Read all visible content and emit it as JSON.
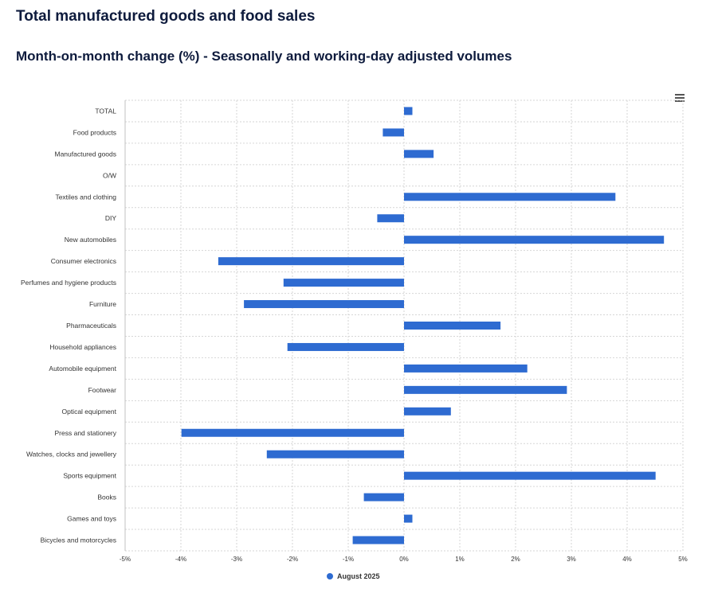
{
  "header": {
    "title": "Total manufactured goods and food sales",
    "subtitle": "Month-on-month change (%) - Seasonally and working-day adjusted volumes"
  },
  "menu": {
    "icon": "hamburger-menu-icon"
  },
  "chart_data": {
    "type": "bar",
    "orientation": "horizontal",
    "categories": [
      "TOTAL",
      "Food products",
      "Manufactured goods",
      "O/W",
      "Textiles and clothing",
      "DIY",
      "New automobiles",
      "Consumer electronics",
      "Perfumes and hygiene products",
      "Furniture",
      "Pharmaceuticals",
      "Household appliances",
      "Automobile equipment",
      "Footwear",
      "Optical equipment",
      "Press and stationery",
      "Watches, clocks and jewellery",
      "Sports equipment",
      "Books",
      "Games and toys",
      "Bicycles and motorcycles"
    ],
    "series": [
      {
        "name": "August 2025",
        "color": "#2e6bd1",
        "values": [
          0.15,
          -0.38,
          0.53,
          null,
          3.79,
          -0.48,
          4.66,
          -3.33,
          -2.16,
          -2.87,
          1.73,
          -2.09,
          2.21,
          2.92,
          0.84,
          -3.99,
          -2.46,
          4.51,
          -0.72,
          0.15,
          -0.92
        ]
      }
    ],
    "xlim": [
      -5,
      5
    ],
    "xticks": [
      -5,
      -4,
      -3,
      -2,
      -1,
      0,
      1,
      2,
      3,
      4,
      5
    ],
    "tick_labels": [
      "-5%",
      "-4%",
      "-3%",
      "-2%",
      "-1%",
      "0%",
      "1%",
      "2%",
      "3%",
      "4%",
      "5%"
    ],
    "grid": true,
    "legend": {
      "position": "bottom-center",
      "label": "August 2025"
    },
    "title": "Total manufactured goods and food sales",
    "xlabel": "",
    "ylabel": ""
  }
}
